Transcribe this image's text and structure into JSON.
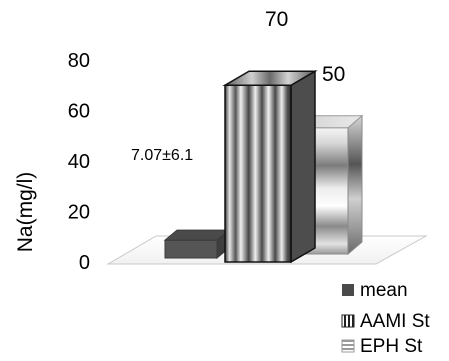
{
  "chart_data": {
    "type": "bar",
    "title": "",
    "xlabel": "",
    "ylabel": "Na(mg/l)",
    "ylim": [
      0,
      80
    ],
    "yticks": [
      0,
      20,
      40,
      60,
      80
    ],
    "grid": false,
    "legend_position": "bottom-right",
    "series": [
      {
        "name": "mean",
        "value": 7.07,
        "label": "7.07±6.1",
        "color": "#4a4a4a",
        "pattern": "solid"
      },
      {
        "name": "AAMI St",
        "value": 70,
        "label": "70",
        "color": "#7a7a7a",
        "pattern": "vertical-stripes"
      },
      {
        "name": "EPH St",
        "value": 50,
        "label": "50",
        "color": "#c8c8c8",
        "pattern": "horizontal-gradient"
      }
    ]
  }
}
